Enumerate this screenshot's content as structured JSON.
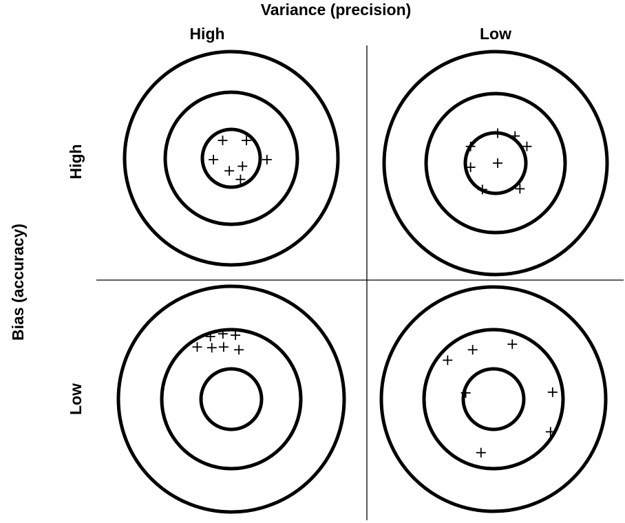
{
  "column_axis": {
    "title": "Variance (precision)",
    "labels": [
      "High",
      "Low"
    ]
  },
  "row_axis": {
    "title": "Bias (accuracy)",
    "labels": [
      "High",
      "Low"
    ]
  },
  "colors": {
    "ink": "#000000",
    "background": "#ffffff"
  },
  "quadrants": [
    {
      "variance": "High",
      "bias": "High",
      "rings": 3,
      "marks": [
        [
          -0.13,
          -0.27
        ],
        [
          0.23,
          -0.27
        ],
        [
          -0.27,
          0.02
        ],
        [
          0.54,
          0.02
        ],
        [
          0.17,
          0.12
        ],
        [
          -0.03,
          0.19
        ],
        [
          0.14,
          0.32
        ]
      ]
    },
    {
      "variance": "Low",
      "bias": "High",
      "rings": 3,
      "marks": [
        [
          0.03,
          -0.43
        ],
        [
          0.28,
          -0.39
        ],
        [
          -0.36,
          -0.24
        ],
        [
          0.45,
          -0.24
        ],
        [
          -0.36,
          0.06
        ],
        [
          0.03,
          0
        ],
        [
          -0.19,
          0.38
        ],
        [
          0.35,
          0.37
        ]
      ]
    },
    {
      "variance": "High",
      "bias": "Low",
      "rings": 3,
      "marks": [
        [
          -0.3,
          -0.9
        ],
        [
          -0.12,
          -0.94
        ],
        [
          0.06,
          -0.92
        ],
        [
          -0.49,
          -0.75
        ],
        [
          -0.28,
          -0.74
        ],
        [
          -0.11,
          -0.75
        ],
        [
          0.11,
          -0.71
        ]
      ]
    },
    {
      "variance": "Low",
      "bias": "Low",
      "rings": 3,
      "marks": [
        [
          -0.3,
          -0.71
        ],
        [
          0.27,
          -0.79
        ],
        [
          -0.66,
          -0.56
        ],
        [
          -0.4,
          -0.09
        ],
        [
          0.85,
          -0.1
        ],
        [
          0.82,
          0.47
        ],
        [
          -0.18,
          0.77
        ]
      ]
    }
  ]
}
